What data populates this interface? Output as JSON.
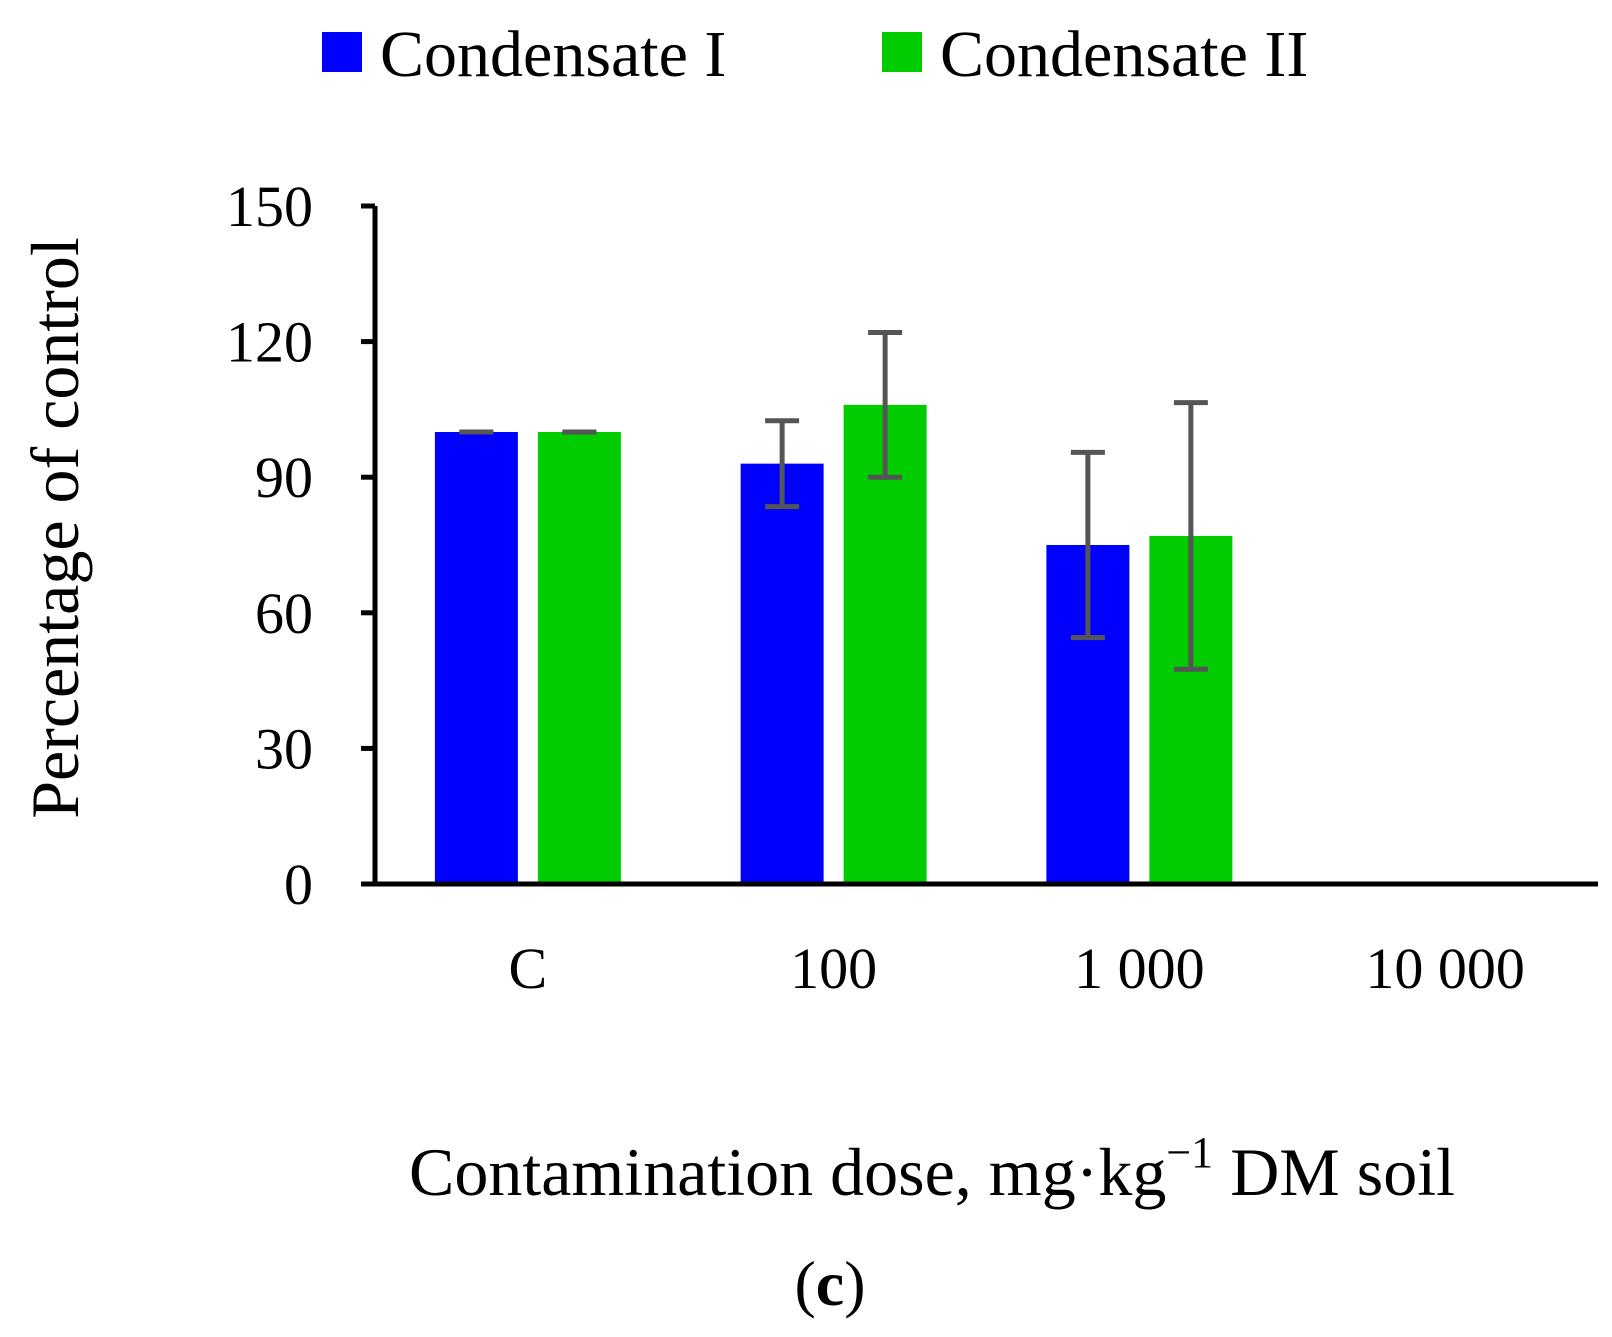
{
  "chart_data": {
    "type": "bar",
    "title": "",
    "categories": [
      "C",
      "100",
      "1 000",
      "10 000"
    ],
    "series": [
      {
        "name": "Condensate I",
        "color": "#0000ff",
        "values": [
          100,
          93,
          75,
          null
        ],
        "errors": [
          0,
          9.5,
          20.5,
          null
        ]
      },
      {
        "name": "Condensate II",
        "color": "#00cc00",
        "values": [
          100,
          106,
          77,
          null
        ],
        "errors": [
          0,
          16,
          29.5,
          null
        ]
      }
    ],
    "ylim": [
      0,
      150
    ],
    "yticks": [
      "0",
      "30",
      "60",
      "90",
      "120",
      "150"
    ],
    "ylabel": "Percentage of control",
    "xlabel": {
      "main": "Contamination dose, mg·kg",
      "superscript": "−1",
      "suffix": " DM soil"
    },
    "panel_label": "c",
    "legend": "top",
    "grid": false
  }
}
